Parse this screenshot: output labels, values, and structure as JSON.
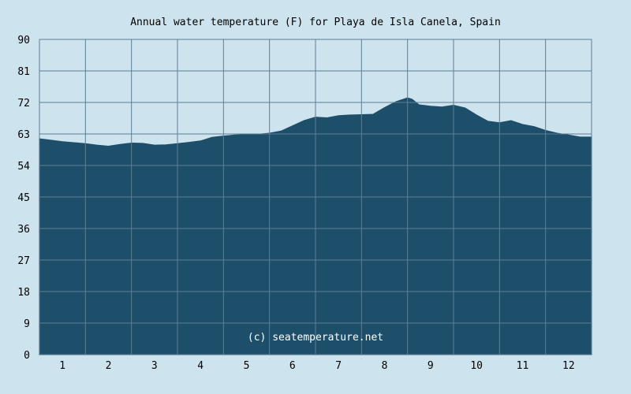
{
  "chart_data": {
    "type": "area",
    "title": "Annual water temperature (F) for Playa de Isla Canela, Spain",
    "xlabel": "",
    "ylabel": "",
    "ylim": [
      0,
      90
    ],
    "yticks": [
      "0",
      "9",
      "18",
      "27",
      "36",
      "45",
      "54",
      "63",
      "72",
      "81",
      "90"
    ],
    "xticks": [
      "1",
      "2",
      "3",
      "4",
      "5",
      "6",
      "7",
      "8",
      "9",
      "10",
      "11",
      "12"
    ],
    "xlim": [
      0.5,
      12.5
    ],
    "grid": true,
    "watermark": "(c) seatemperature.net",
    "colors": {
      "fill": "#1d4f6b",
      "grid": "#5d7f94",
      "background": "#cde3ee"
    },
    "series": [
      {
        "x": [
          0.5,
          0.75,
          1.0,
          1.25,
          1.5,
          1.75,
          2.0,
          2.25,
          2.5,
          2.75,
          3.0,
          3.25,
          3.5,
          3.75,
          4.0,
          4.25,
          4.5,
          4.75,
          5.0,
          5.25,
          5.5,
          5.75,
          6.0,
          6.25,
          6.5,
          6.75,
          7.0,
          7.25,
          7.5,
          7.75,
          8.0,
          8.25,
          8.5,
          8.6,
          8.75,
          9.0,
          9.25,
          9.5,
          9.75,
          10.0,
          10.25,
          10.5,
          10.75,
          11.0,
          11.25,
          11.5,
          11.75,
          12.0,
          12.25,
          12.5
        ],
        "values": [
          61.6,
          61.2,
          60.8,
          60.5,
          60.2,
          59.8,
          59.5,
          60.0,
          60.4,
          60.3,
          59.8,
          59.9,
          60.2,
          60.6,
          61.0,
          62.0,
          62.4,
          62.7,
          62.8,
          62.9,
          63.2,
          63.8,
          65.3,
          66.8,
          67.8,
          67.6,
          68.2,
          68.4,
          68.5,
          68.6,
          70.5,
          72.2,
          73.3,
          72.9,
          71.3,
          70.9,
          70.7,
          71.2,
          70.4,
          68.4,
          66.6,
          66.2,
          66.8,
          65.7,
          65.1,
          64.0,
          63.2,
          62.7,
          62.1,
          62.1
        ]
      }
    ]
  }
}
